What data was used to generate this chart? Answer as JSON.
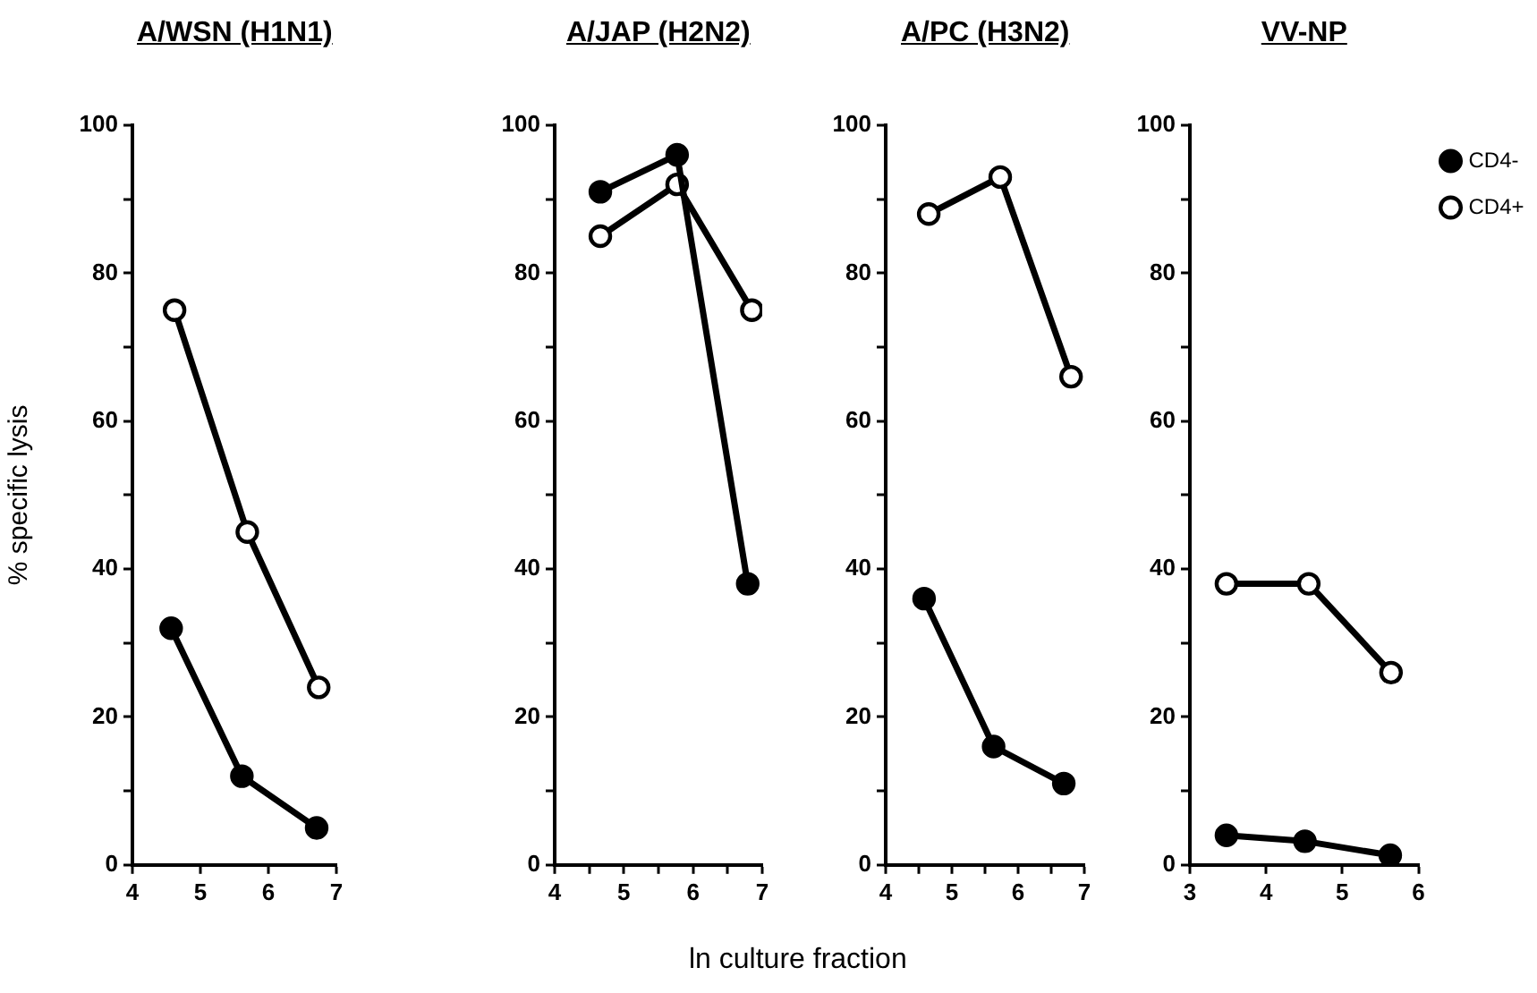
{
  "chart_data": [
    {
      "type": "line",
      "title": "A/WSN (H1N1)",
      "ylabel": "% specific lysis",
      "xlim": [
        4,
        7
      ],
      "xticks": [
        4,
        5,
        6,
        7
      ],
      "ylim": [
        0,
        100
      ],
      "yticks": [
        0,
        {
          "value": 10,
          "label": null
        },
        20,
        {
          "value": 30,
          "label": null
        },
        40,
        {
          "value": 50,
          "label": null
        },
        60,
        {
          "value": 70,
          "label": null
        },
        80,
        {
          "value": 90,
          "label": null
        },
        100
      ],
      "marker": "circle",
      "line_style": "solid",
      "legend": false,
      "series": [
        {
          "color": "#000000",
          "x": [
            4.57,
            5.61,
            6.71
          ],
          "values": [
            32,
            12,
            5
          ]
        },
        {
          "color": "#000000",
          "x": [
            4.62,
            5.69,
            6.74
          ],
          "values": [
            75,
            45,
            24
          ]
        }
      ]
    },
    {
      "type": "line",
      "title": "A/JAP (H2N2)",
      "xlabel": "ln culture fraction",
      "xlim": [
        4,
        7
      ],
      "xticks": [
        4,
        {
          "value": 4.5,
          "label": null
        },
        5,
        {
          "value": 5.5,
          "label": null
        },
        6,
        {
          "value": 6.5,
          "label": null
        },
        7
      ],
      "ylim": [
        0,
        100
      ],
      "yticks": [
        0,
        {
          "value": 10,
          "label": null
        },
        20,
        {
          "value": 30,
          "label": null
        },
        40,
        {
          "value": 50,
          "label": null
        },
        60,
        {
          "value": 70,
          "label": null
        },
        80,
        {
          "value": 90,
          "label": null
        },
        100
      ],
      "marker": "circle",
      "line_style": "solid",
      "legend": false,
      "series": [
        {
          "color": "#000000",
          "x": [
            4.66,
            5.77,
            6.79
          ],
          "values": [
            91,
            96,
            38
          ]
        },
        {
          "color": "#000000",
          "x": [
            4.66,
            5.77,
            6.85
          ],
          "values": [
            85,
            92,
            75
          ]
        }
      ]
    },
    {
      "type": "line",
      "title": "A/PC (H3N2)",
      "xlim": [
        4,
        7
      ],
      "xticks": [
        4,
        {
          "value": 4.5,
          "label": null
        },
        5,
        {
          "value": 5.5,
          "label": null
        },
        6,
        {
          "value": 6.5,
          "label": null
        },
        7
      ],
      "ylim": [
        0,
        100
      ],
      "yticks": [
        0,
        {
          "value": 10,
          "label": null
        },
        20,
        {
          "value": 30,
          "label": null
        },
        40,
        {
          "value": 50,
          "label": null
        },
        60,
        {
          "value": 70,
          "label": null
        },
        80,
        {
          "value": 90,
          "label": null
        },
        100
      ],
      "marker": "circle",
      "line_style": "solid",
      "legend": false,
      "series": [
        {
          "color": "#000000",
          "x": [
            4.58,
            5.63,
            6.69
          ],
          "values": [
            36,
            16,
            11
          ]
        },
        {
          "color": "#000000",
          "x": [
            4.65,
            5.73,
            6.8
          ],
          "values": [
            88,
            93,
            66
          ]
        }
      ]
    },
    {
      "type": "line",
      "title": "VV-NP",
      "xlim": [
        3,
        6
      ],
      "xticks": [
        3,
        4,
        5,
        6
      ],
      "ylim": [
        0,
        100
      ],
      "yticks": [
        0,
        {
          "value": 10,
          "label": null
        },
        20,
        {
          "value": 30,
          "label": null
        },
        40,
        {
          "value": 50,
          "label": null
        },
        60,
        {
          "value": 70,
          "label": null
        },
        80,
        {
          "value": 90,
          "label": null
        },
        100
      ],
      "marker": "circle",
      "line_style": "solid",
      "legend": "top right",
      "series": [
        {
          "name": "CD4-",
          "color": "#000000",
          "x": [
            3.48,
            4.51,
            5.63
          ],
          "values": [
            4,
            3.2,
            1.3
          ]
        },
        {
          "name": "CD4+",
          "color": "#000000",
          "x": [
            3.48,
            4.56,
            5.64
          ],
          "values": [
            38,
            38,
            26
          ]
        }
      ]
    }
  ]
}
